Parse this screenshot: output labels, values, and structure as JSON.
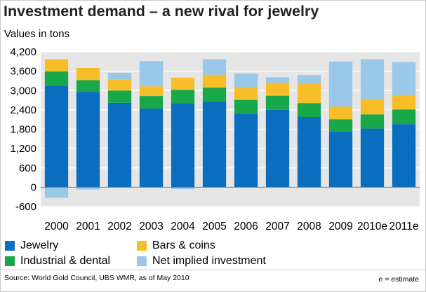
{
  "title": "Investment demand – a new rival for jewelry",
  "subtitle": "Values in tons",
  "source": "Source: World Gold Council, UBS WMR, as of May 2010",
  "note": "e = estimate",
  "colors": {
    "jewelry": "#0a6dbd",
    "industrial": "#18a84a",
    "bars": "#f7be2a",
    "net": "#9ac8e8",
    "grid": "#ffffff",
    "plot_bg": "#e6e6e6",
    "zero_line": "#7a7a7a"
  },
  "legend": [
    {
      "key": "jewelry",
      "label": "Jewelry"
    },
    {
      "key": "bars",
      "label": "Bars & coins"
    },
    {
      "key": "industrial",
      "label": "Industrial & dental"
    },
    {
      "key": "net",
      "label": "Net implied investment"
    }
  ],
  "chart_data": {
    "type": "bar",
    "stacked": true,
    "title": "Investment demand – a new rival for jewelry",
    "ylabel": "Values in tons",
    "ylim": [
      -600,
      4200
    ],
    "yticks": [
      -600,
      0,
      600,
      1200,
      1800,
      2400,
      3000,
      3600,
      4200
    ],
    "ytick_labels": [
      "-600",
      "0",
      "600",
      "1,200",
      "1,800",
      "2,400",
      "3,000",
      "3,600",
      "4,200"
    ],
    "categories": [
      "2000",
      "2001",
      "2002",
      "2003",
      "2004",
      "2005",
      "2006",
      "2007",
      "2008",
      "2009",
      "2010e",
      "2011e"
    ],
    "legend_position": "bottom",
    "grid": true,
    "series": [
      {
        "name": "Jewelry",
        "key": "jewelry",
        "values": [
          3150,
          2960,
          2620,
          2440,
          2610,
          2660,
          2280,
          2400,
          2180,
          1730,
          1820,
          1960
        ]
      },
      {
        "name": "Industrial & dental",
        "key": "industrial",
        "values": [
          440,
          360,
          380,
          390,
          410,
          430,
          430,
          440,
          430,
          380,
          440,
          450
        ]
      },
      {
        "name": "Bars & coins",
        "key": "bars",
        "values": [
          380,
          380,
          350,
          300,
          380,
          400,
          400,
          400,
          600,
          390,
          460,
          450
        ]
      },
      {
        "name": "Net implied investment",
        "key": "net",
        "values": [
          -330,
          -70,
          200,
          780,
          -60,
          480,
          420,
          170,
          270,
          1400,
          1250,
          1020
        ]
      }
    ]
  }
}
